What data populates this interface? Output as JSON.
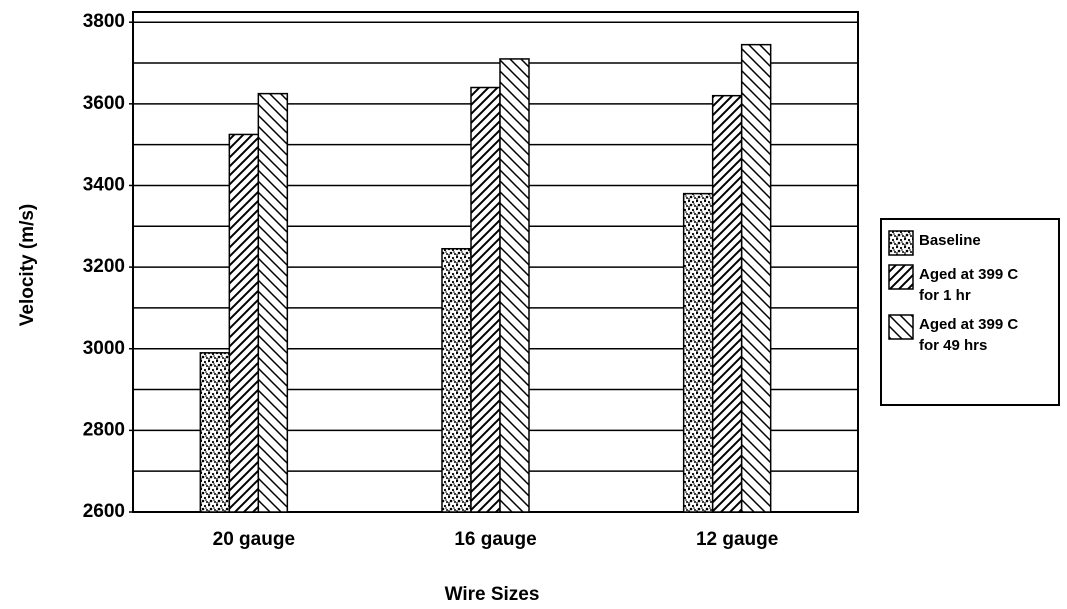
{
  "chart_data": {
    "type": "bar",
    "x_label": "Wire Sizes",
    "y_label": "Velocity (m/s)",
    "categories": [
      "20 gauge",
      "16 gauge",
      "12 gauge"
    ],
    "series": [
      {
        "name": "Baseline",
        "color": "#000000",
        "pattern": "stipple",
        "values": [
          2990,
          3245,
          3380
        ]
      },
      {
        "name": "Aged at 399 C for 1 hr",
        "color": "#000000",
        "pattern": "forward-hatch",
        "values": [
          3525,
          3640,
          3620
        ]
      },
      {
        "name": "Aged at 399 C for 49 hrs",
        "color": "#000000",
        "pattern": "back-hatch",
        "values": [
          3625,
          3710,
          3745
        ]
      }
    ],
    "ylim": [
      2600,
      3825
    ],
    "yticks": [
      2600,
      2800,
      3000,
      3200,
      3400,
      3600,
      3800
    ],
    "minor_yticks": [
      2700,
      2900,
      3100,
      3300,
      3500,
      3700
    ],
    "grid": true,
    "legend": "right"
  }
}
